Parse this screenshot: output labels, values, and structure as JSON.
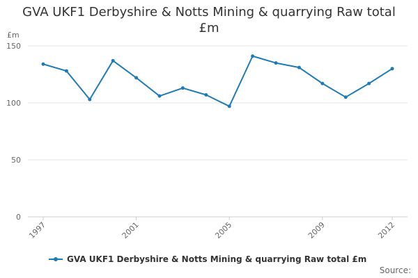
{
  "chart_data": {
    "type": "line",
    "title": "GVA UKF1 Derbyshire & Notts Mining & quarrying Raw total £m",
    "ylabel": "£m",
    "xlabel": "",
    "x": [
      1997,
      1998,
      1999,
      2000,
      2001,
      2002,
      2003,
      2004,
      2005,
      2006,
      2007,
      2008,
      2009,
      2010,
      2011,
      2012
    ],
    "xticks": [
      "1997",
      "2001",
      "2005",
      "2009",
      "2012"
    ],
    "yticks": [
      "0",
      "50",
      "100",
      "150"
    ],
    "ylim": [
      0,
      150
    ],
    "grid": true,
    "legend": "bottom",
    "series": [
      {
        "name": "GVA UKF1 Derbyshire & Notts Mining & quarrying Raw total £m",
        "color": "#1f7bb6",
        "values": [
          134,
          128,
          103,
          137,
          122,
          106,
          113,
          107,
          97,
          141,
          135,
          131,
          117,
          105,
          117,
          130
        ]
      }
    ]
  },
  "footer": {
    "source_label": "Source:"
  }
}
